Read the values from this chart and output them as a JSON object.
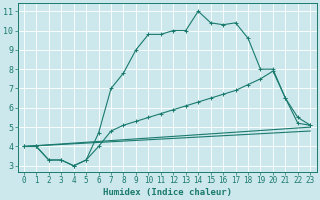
{
  "line1_x": [
    0,
    1,
    2,
    3,
    4,
    5,
    6,
    7,
    8,
    9,
    10,
    11,
    12,
    13,
    14,
    15,
    16,
    17,
    18,
    19,
    20,
    21,
    22,
    23
  ],
  "line1_y": [
    4.0,
    4.0,
    3.3,
    3.3,
    3.0,
    3.3,
    4.7,
    7.0,
    7.8,
    9.0,
    9.8,
    9.8,
    10.0,
    10.0,
    11.0,
    10.4,
    10.3,
    10.4,
    9.6,
    8.0,
    8.0,
    6.5,
    5.2,
    5.1
  ],
  "line2_x": [
    0,
    1,
    2,
    3,
    4,
    5,
    6,
    7,
    8,
    9,
    10,
    11,
    12,
    13,
    14,
    15,
    16,
    17,
    18,
    19,
    20,
    21,
    22,
    23
  ],
  "line2_y": [
    4.0,
    4.0,
    3.3,
    3.3,
    3.0,
    3.3,
    4.0,
    4.8,
    5.1,
    5.3,
    5.5,
    5.7,
    5.9,
    6.1,
    6.3,
    6.5,
    6.7,
    6.9,
    7.2,
    7.5,
    7.9,
    6.5,
    5.5,
    5.1
  ],
  "line3_x": [
    0,
    23
  ],
  "line3_y": [
    4.0,
    5.0
  ],
  "line4_x": [
    0,
    23
  ],
  "line4_y": [
    4.0,
    4.8
  ],
  "color": "#1a7a6e",
  "bg_color": "#cce8ec",
  "grid_color": "#ffffff",
  "xlabel": "Humidex (Indice chaleur)",
  "xlim": [
    -0.5,
    23.5
  ],
  "ylim": [
    2.7,
    11.4
  ],
  "xticks": [
    0,
    1,
    2,
    3,
    4,
    5,
    6,
    7,
    8,
    9,
    10,
    11,
    12,
    13,
    14,
    15,
    16,
    17,
    18,
    19,
    20,
    21,
    22,
    23
  ],
  "yticks": [
    3,
    4,
    5,
    6,
    7,
    8,
    9,
    10,
    11
  ],
  "xlabel_fontsize": 6.5,
  "tick_fontsize": 5.5
}
